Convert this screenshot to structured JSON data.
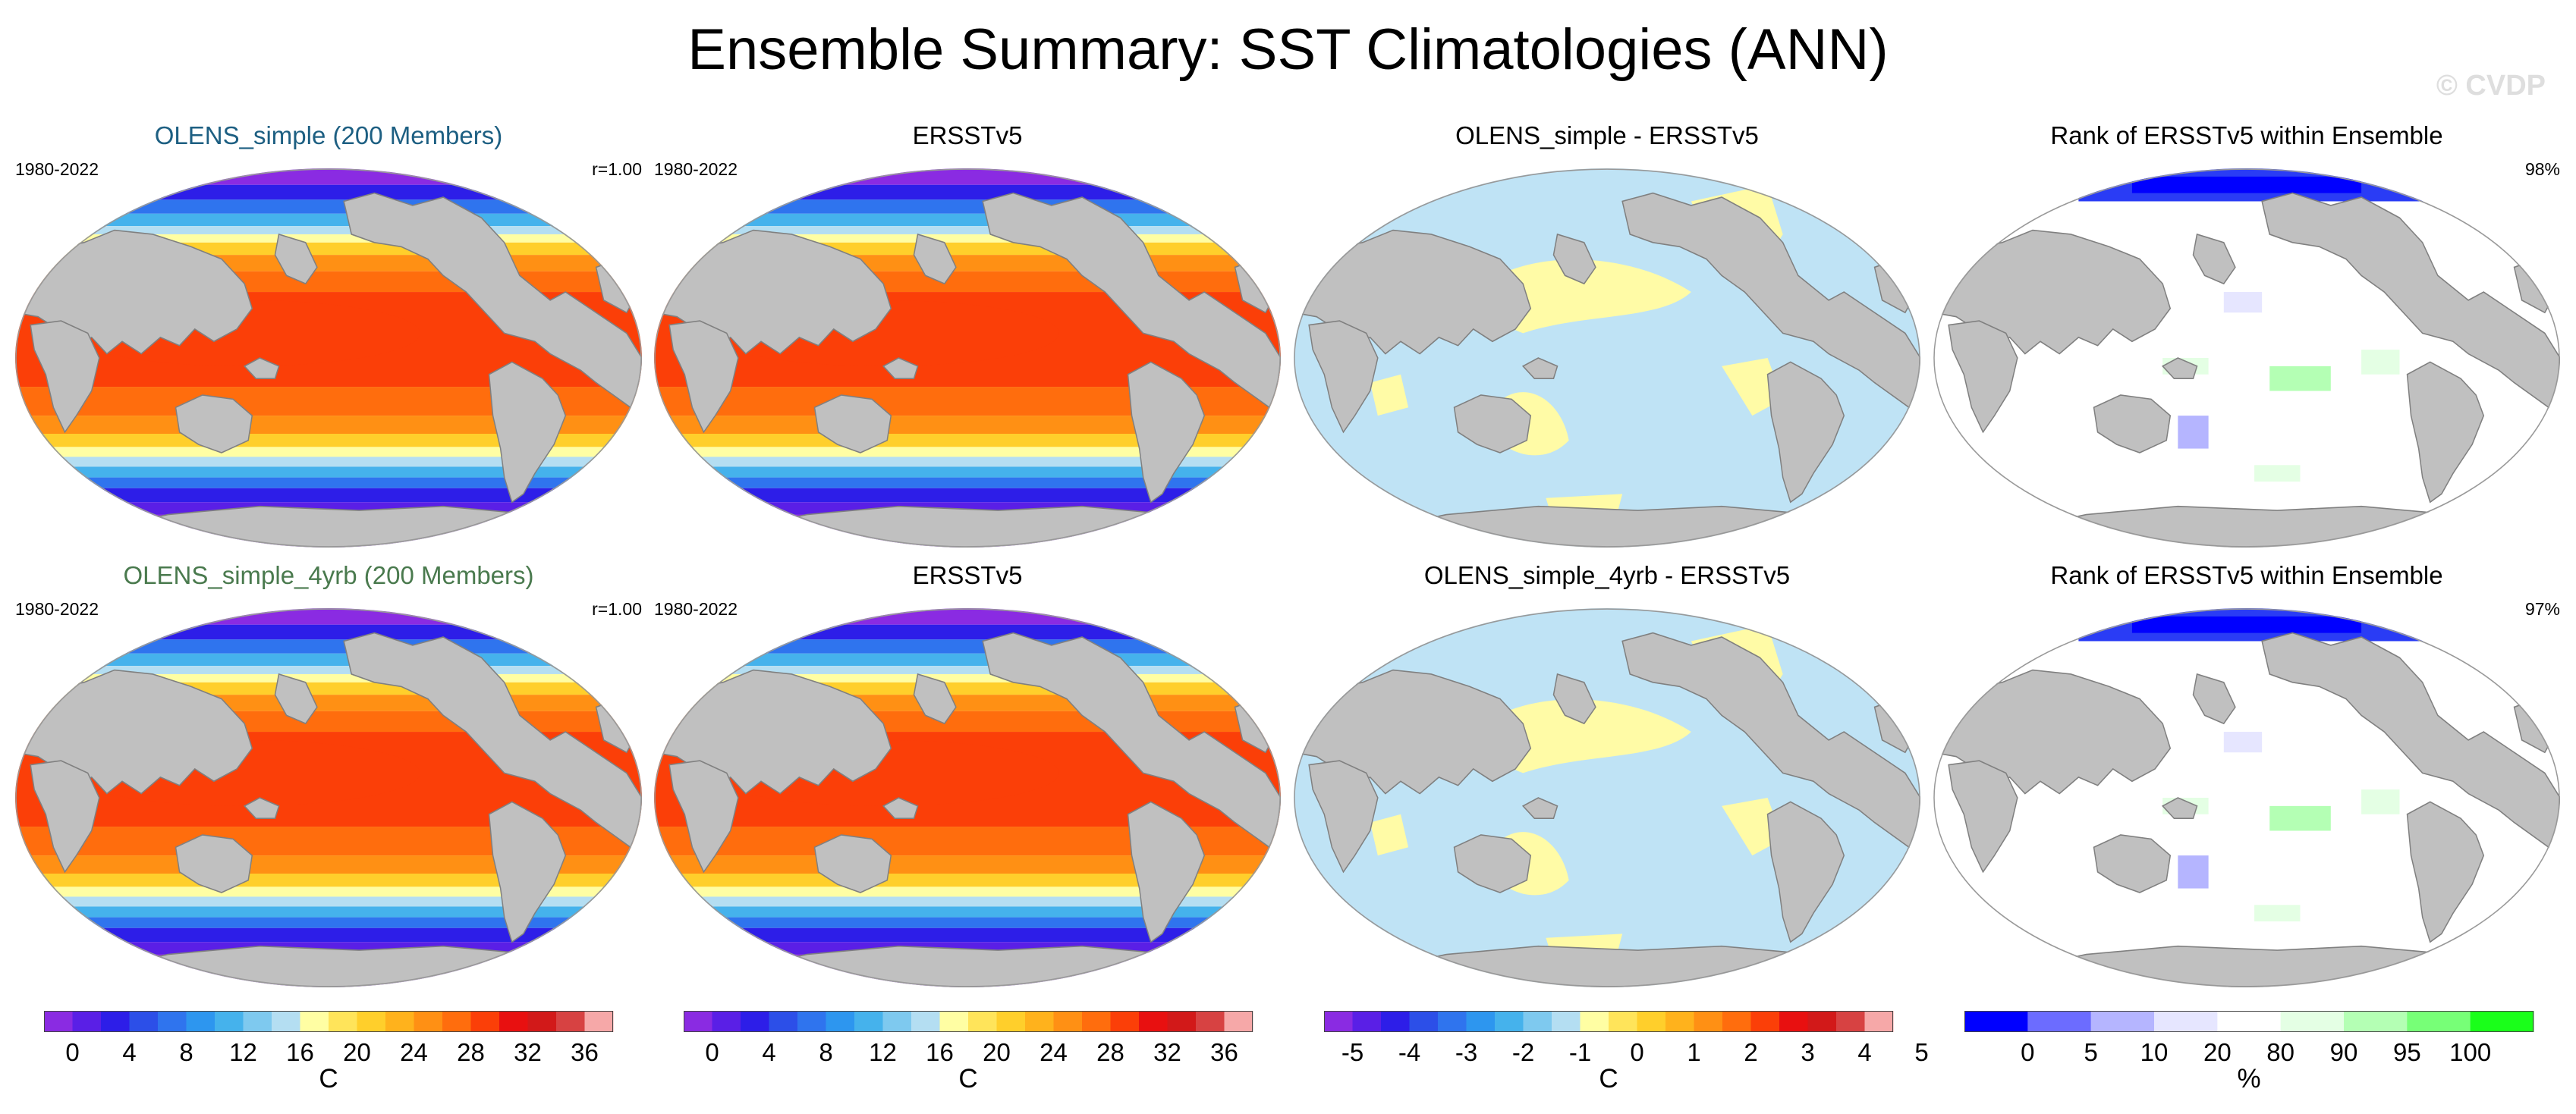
{
  "title": "Ensemble Summary: SST Climatologies (ANN)",
  "watermark": "© CVDP",
  "rows": [
    {
      "panels": [
        {
          "title": "OLENS_simple (200 Members)",
          "title_color": "#1d5f82",
          "left_label": "1980-2022",
          "right_label": "r=1.00",
          "kind": "sst"
        },
        {
          "title": "ERSSTv5",
          "title_color": "#000000",
          "left_label": "1980-2022",
          "right_label": "",
          "kind": "sst"
        },
        {
          "title": "OLENS_simple - ERSSTv5",
          "title_color": "#000000",
          "left_label": "",
          "right_label": "",
          "kind": "diff"
        },
        {
          "title": "Rank of ERSSTv5 within Ensemble",
          "title_color": "#000000",
          "left_label": "",
          "right_label": "98%",
          "kind": "rank"
        }
      ]
    },
    {
      "panels": [
        {
          "title": "OLENS_simple_4yrb (200 Members)",
          "title_color": "#4a7a4e",
          "left_label": "1980-2022",
          "right_label": "r=1.00",
          "kind": "sst"
        },
        {
          "title": "ERSSTv5",
          "title_color": "#000000",
          "left_label": "1980-2022",
          "right_label": "",
          "kind": "sst"
        },
        {
          "title": "OLENS_simple_4yrb - ERSSTv5",
          "title_color": "#000000",
          "left_label": "",
          "right_label": "",
          "kind": "diff"
        },
        {
          "title": "Rank of ERSSTv5 within Ensemble",
          "title_color": "#000000",
          "left_label": "",
          "right_label": "97%",
          "kind": "rank"
        }
      ]
    }
  ],
  "colorbars": [
    {
      "labels": [
        "0",
        "4",
        "8",
        "12",
        "16",
        "20",
        "24",
        "28",
        "32",
        "36"
      ],
      "unit": "C",
      "colors": [
        "#8a2be2",
        "#5a1fe6",
        "#2d1ee8",
        "#2c4fe8",
        "#2f74ee",
        "#2d96ef",
        "#45b2ec",
        "#7ec9ef",
        "#b4def2",
        "#fffea3",
        "#ffe45a",
        "#ffcf2b",
        "#ffb21c",
        "#ff9014",
        "#ff6d0d",
        "#fb3f08",
        "#e81010",
        "#d21919",
        "#d74242",
        "#f6a8a8"
      ]
    },
    {
      "labels": [
        "0",
        "4",
        "8",
        "12",
        "16",
        "20",
        "24",
        "28",
        "32",
        "36"
      ],
      "unit": "C",
      "colors": [
        "#8a2be2",
        "#5a1fe6",
        "#2d1ee8",
        "#2c4fe8",
        "#2f74ee",
        "#2d96ef",
        "#45b2ec",
        "#7ec9ef",
        "#b4def2",
        "#fffea3",
        "#ffe45a",
        "#ffcf2b",
        "#ffb21c",
        "#ff9014",
        "#ff6d0d",
        "#fb3f08",
        "#e81010",
        "#d21919",
        "#d74242",
        "#f6a8a8"
      ]
    },
    {
      "labels": [
        "-5",
        "-4",
        "-3",
        "-2",
        "-1",
        "0",
        "1",
        "2",
        "3",
        "4",
        "5"
      ],
      "unit": "C",
      "colors": [
        "#8a2be2",
        "#5a1fe6",
        "#2d1ee8",
        "#2c4fe8",
        "#2f74ee",
        "#2d96ef",
        "#45b2ec",
        "#7ec9ef",
        "#b4def2",
        "#fffea3",
        "#ffe45a",
        "#ffcf2b",
        "#ffb21c",
        "#ff9014",
        "#ff6d0d",
        "#fb3f08",
        "#e81010",
        "#d21919",
        "#d74242",
        "#f6a8a8"
      ]
    },
    {
      "labels": [
        "0",
        "5",
        "10",
        "20",
        "80",
        "90",
        "95",
        "100"
      ],
      "unit": "%",
      "colors": [
        "#0000ff",
        "#6c6cff",
        "#b5b5ff",
        "#e6e6ff",
        "#ffffff",
        "#e4ffe4",
        "#b4ffb4",
        "#77ff77",
        "#1aff1a"
      ]
    }
  ],
  "colors": {
    "land": "#c0c0c0",
    "coast": "#808080",
    "diff_neg": "#bfe3f5",
    "diff_pos": "#fffba6"
  }
}
